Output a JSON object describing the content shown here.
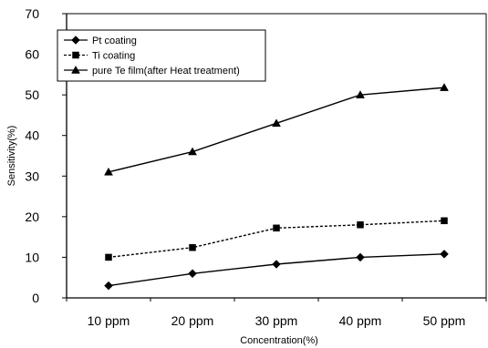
{
  "chart_data": {
    "type": "line",
    "categories": [
      "10 ppm",
      "20 ppm",
      "30 ppm",
      "40 ppm",
      "50 ppm"
    ],
    "series": [
      {
        "name": "Pt coating",
        "values": [
          3,
          6,
          8.3,
          10,
          10.8
        ],
        "marker": "diamond",
        "dash": "solid"
      },
      {
        "name": "Ti coating",
        "values": [
          10,
          12.4,
          17.2,
          18,
          19
        ],
        "marker": "square",
        "dash": "dashed"
      },
      {
        "name": "pure Te film(after Heat treatment)",
        "values": [
          31,
          36,
          43,
          50,
          51.8
        ],
        "marker": "triangle",
        "dash": "solid"
      }
    ],
    "title": "",
    "xlabel": "Concentration(%)",
    "ylabel": "Sensitivity(%)",
    "ylim": [
      0,
      70
    ],
    "yticks": [
      0,
      10,
      20,
      30,
      40,
      50,
      60,
      70
    ],
    "ytick_labels": [
      "0",
      "10",
      "20",
      "30",
      "40",
      "50",
      "60",
      "70"
    ],
    "grid": false,
    "legend_position": "top-left",
    "colors": {
      "line": "#000000",
      "background": "#ffffff"
    }
  }
}
